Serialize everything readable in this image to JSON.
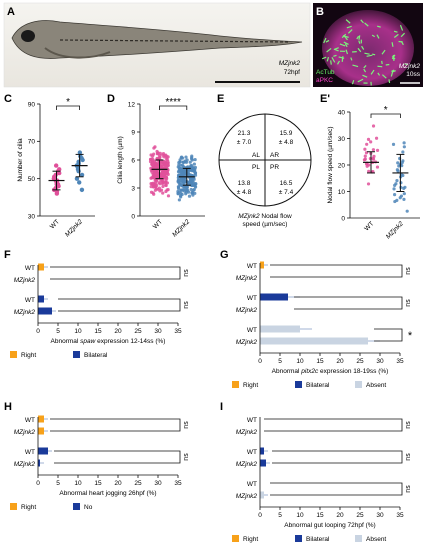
{
  "colors": {
    "magenta": "#e0509a",
    "blue": "#1f3f99",
    "steel": "#4f86b8",
    "orange": "#f7a11a",
    "navy": "#1a3a9a",
    "lightgrey": "#c9d4e2"
  },
  "panels": {
    "A": {
      "label": "A",
      "caption_line1": "MZjnk2",
      "caption_line2": "72hpf"
    },
    "B": {
      "label": "B",
      "stain1": "AcTub",
      "stain2": "aPKC",
      "caption_line1": "MZjnk2",
      "caption_line2": "10ss"
    },
    "E": {
      "label": "E",
      "quadrants": {
        "AL": "AL",
        "AR": "AR",
        "PL": "PL",
        "PR": "PR"
      },
      "values": {
        "AL": [
          "21.3",
          "± 7.0"
        ],
        "AR": [
          "15.9",
          "± 4.8"
        ],
        "PL": [
          "13.8",
          "± 4.8"
        ],
        "PR": [
          "16.5",
          "± 7.4"
        ]
      },
      "caption_italic": "MZjnk2",
      "caption_rest": " Nodal flow",
      "caption_line2": "speed (µm/sec)"
    }
  },
  "chart_data": [
    {
      "panel": "C",
      "type": "scatter",
      "ylabel": "Number of cilia",
      "categories": [
        "WT",
        "MZjnk2"
      ],
      "ylim": [
        30,
        90
      ],
      "yticks": [
        "30",
        "50",
        "70",
        "90"
      ],
      "means": [
        49,
        57
      ],
      "sd": [
        5,
        6
      ],
      "sig": "*",
      "points": [
        [
          42,
          43,
          44,
          45,
          46,
          47,
          47,
          48,
          49,
          49,
          50,
          51,
          52,
          53,
          54,
          55,
          57
        ],
        [
          44,
          48,
          50,
          52,
          54,
          55,
          56,
          57,
          58,
          59,
          60,
          61,
          62,
          64
        ]
      ]
    },
    {
      "panel": "D",
      "type": "scatter",
      "ylabel": "Cilia length (µm)",
      "categories": [
        "WT",
        "MZjnk2"
      ],
      "ylim": [
        0,
        12
      ],
      "yticks": [
        "0",
        "3",
        "6",
        "9",
        "12"
      ],
      "means": [
        5.0,
        4.2
      ],
      "sd": [
        1.0,
        0.9
      ],
      "sig": "****"
    },
    {
      "panel": "E'",
      "type": "scatter",
      "ylabel": "Nodal flow speed (µm/sec)",
      "categories": [
        "WT",
        "MZjnk2"
      ],
      "ylim": [
        0,
        40
      ],
      "yticks": [
        "0",
        "10",
        "20",
        "30",
        "40"
      ],
      "means": [
        21,
        17
      ],
      "sd": [
        4,
        7
      ],
      "sig": "*"
    },
    {
      "panel": "F",
      "type": "bar",
      "orientation": "horizontal",
      "xlabel": "Abnormal spaw expression 12-14ss (%)",
      "xlim": [
        0,
        35
      ],
      "xticks": [
        "0",
        "5",
        "10",
        "15",
        "20",
        "25",
        "30",
        "35"
      ],
      "groups": [
        {
          "series": "Right",
          "rows": [
            {
              "cat": "WT",
              "value": 1.5
            },
            {
              "cat": "MZjnk2",
              "value": 0
            }
          ],
          "sig": "ns"
        },
        {
          "series": "Bilateral",
          "rows": [
            {
              "cat": "WT",
              "value": 1.5
            },
            {
              "cat": "MZjnk2",
              "value": 3.5
            }
          ],
          "sig": "ns"
        }
      ],
      "legend": [
        "Right",
        "Bilateral"
      ]
    },
    {
      "panel": "G",
      "type": "bar",
      "orientation": "horizontal",
      "xlabel": "Abnormal pitx2c expression 18-19ss (%)",
      "xlim": [
        0,
        35
      ],
      "xticks": [
        "0",
        "5",
        "10",
        "15",
        "20",
        "25",
        "30",
        "35"
      ],
      "groups": [
        {
          "series": "Right",
          "rows": [
            {
              "cat": "WT",
              "value": 1
            },
            {
              "cat": "MZjnk2",
              "value": 0
            }
          ],
          "sig": "ns"
        },
        {
          "series": "Bilateral",
          "rows": [
            {
              "cat": "WT",
              "value": 7
            },
            {
              "cat": "MZjnk2",
              "value": 0
            }
          ],
          "sig": "ns"
        },
        {
          "series": "Absent",
          "rows": [
            {
              "cat": "WT",
              "value": 10
            },
            {
              "cat": "MZjnk2",
              "value": 27
            }
          ],
          "sig": "*"
        }
      ],
      "legend": [
        "Right",
        "Bilateral",
        "Absent"
      ]
    },
    {
      "panel": "H",
      "type": "bar",
      "orientation": "horizontal",
      "xlabel": "Abnormal heart jogging 26hpf (%)",
      "xlim": [
        0,
        35
      ],
      "xticks": [
        "0",
        "5",
        "10",
        "15",
        "20",
        "25",
        "30",
        "35"
      ],
      "groups": [
        {
          "series": "Right",
          "rows": [
            {
              "cat": "WT",
              "value": 1.5
            },
            {
              "cat": "MZjnk2",
              "value": 1.5
            }
          ],
          "sig": "ns"
        },
        {
          "series": "No",
          "rows": [
            {
              "cat": "WT",
              "value": 2.5
            },
            {
              "cat": "MZjnk2",
              "value": 0.5
            }
          ],
          "sig": "ns"
        }
      ],
      "legend": [
        "Right",
        "No"
      ]
    },
    {
      "panel": "I",
      "type": "bar",
      "orientation": "horizontal",
      "xlabel": "Abnormal gut looping 72hpf (%)",
      "xlim": [
        0,
        35
      ],
      "xticks": [
        "0",
        "5",
        "10",
        "15",
        "20",
        "25",
        "30",
        "35"
      ],
      "groups": [
        {
          "series": "Right",
          "rows": [
            {
              "cat": "WT",
              "value": 0
            },
            {
              "cat": "MZjnk2",
              "value": 0
            }
          ],
          "sig": "ns"
        },
        {
          "series": "Bilateral",
          "rows": [
            {
              "cat": "WT",
              "value": 1
            },
            {
              "cat": "MZjnk2",
              "value": 1.5
            }
          ],
          "sig": "ns"
        },
        {
          "series": "Absent",
          "rows": [
            {
              "cat": "WT",
              "value": 0
            },
            {
              "cat": "MZjnk2",
              "value": 1
            }
          ],
          "sig": "ns"
        }
      ],
      "legend": [
        "Right",
        "Bilateral",
        "Absent"
      ]
    }
  ]
}
